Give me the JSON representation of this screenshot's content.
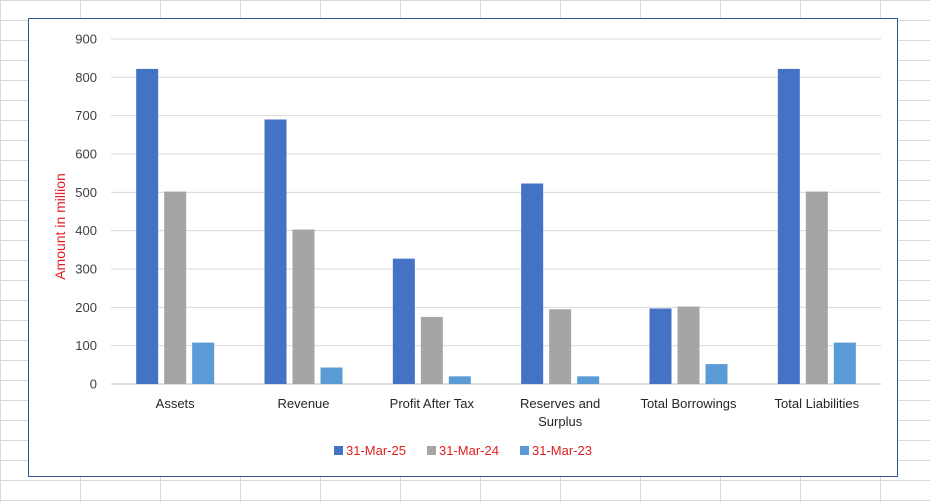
{
  "chart_data": {
    "type": "bar",
    "title": "",
    "xlabel": "",
    "ylabel": "Amount in million",
    "ylim": [
      0,
      900
    ],
    "yticks": [
      0,
      100,
      200,
      300,
      400,
      500,
      600,
      700,
      800,
      900
    ],
    "grid": true,
    "legend_position": "bottom",
    "categories": [
      "Assets",
      "Revenue",
      "Profit After Tax",
      "Reserves and Surplus",
      "Total Borrowings",
      "Total Liabilities"
    ],
    "series": [
      {
        "name": "31-Mar-25",
        "color": "#4472c4",
        "values": [
          822,
          690,
          327,
          523,
          197,
          822
        ]
      },
      {
        "name": "31-Mar-24",
        "color": "#a5a5a5",
        "values": [
          502,
          403,
          175,
          195,
          202,
          502
        ]
      },
      {
        "name": "31-Mar-23",
        "color": "#5b9bd5",
        "values": [
          108,
          43,
          20,
          20,
          52,
          108
        ]
      }
    ],
    "legend_text_color": "#e02020"
  }
}
